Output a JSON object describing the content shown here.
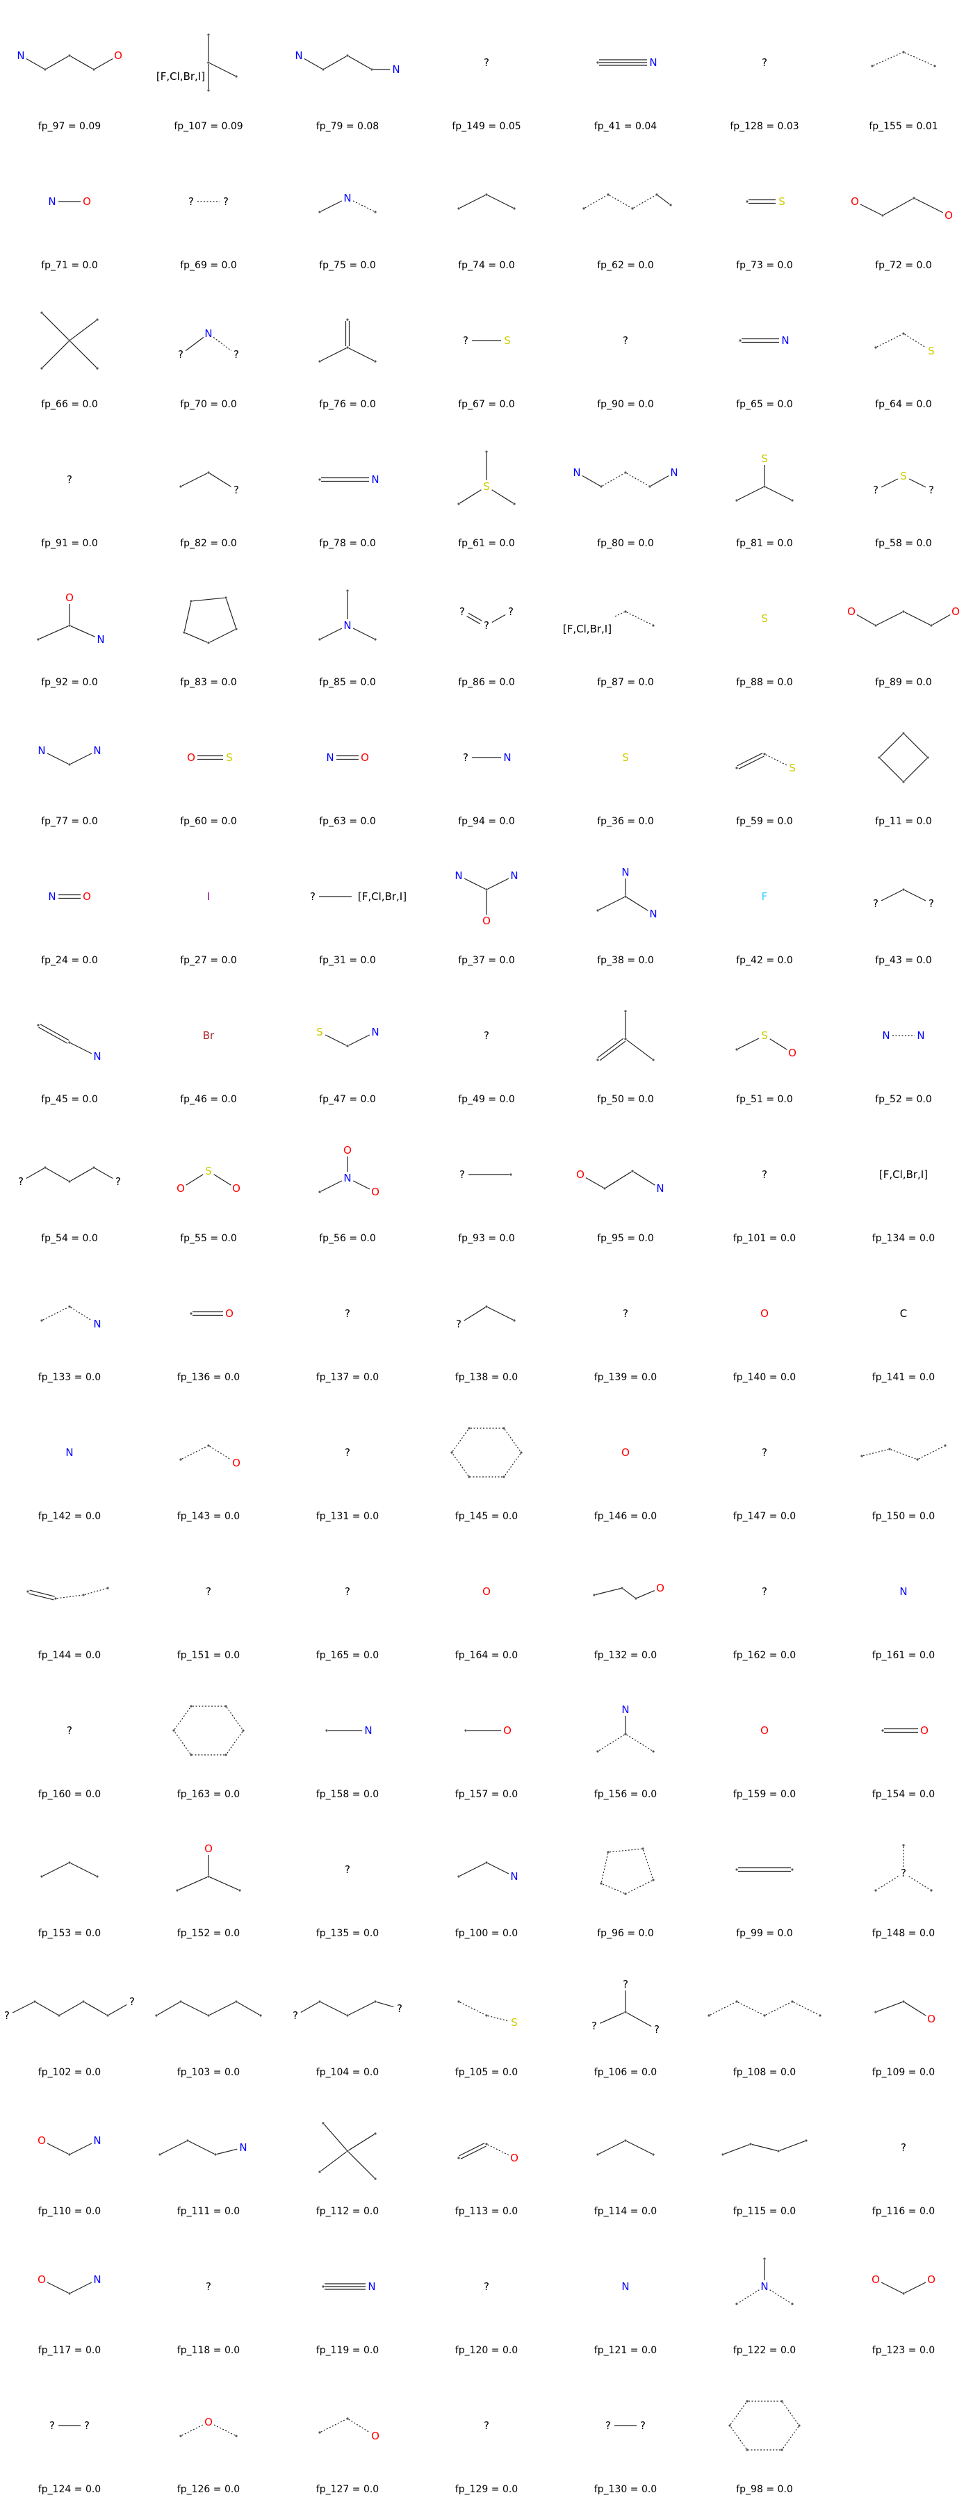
{
  "colors": {
    "C": "#000000",
    "N": "#0000ff",
    "O": "#ff0000",
    "S": "#cccc00",
    "F": "#33ccff",
    "I": "#940094",
    "Br": "#a62929",
    "X": "#000000",
    "?": "#000000"
  },
  "cells": [
    {
      "label": "fp_97 = 0.09",
      "icon": "fragment-N-C-C-C-O"
    },
    {
      "label": "fp_107 = 0.09",
      "icon": "fragment-halide-quaternary-carbon"
    },
    {
      "label": "fp_79 = 0.08",
      "icon": "fragment-N-C-C-C-N"
    },
    {
      "label": "fp_149 = 0.05",
      "icon": "fragment-wildcard"
    },
    {
      "label": "fp_41 = 0.04",
      "icon": "fragment-nitrile"
    },
    {
      "label": "fp_128 = 0.03",
      "icon": "fragment-wildcard"
    },
    {
      "label": "fp_155 = 0.01",
      "icon": "fragment-aromatic-C-C-C"
    },
    {
      "label": "fp_71 = 0.0",
      "icon": "fragment-N-O"
    },
    {
      "label": "fp_69 = 0.0",
      "icon": "fragment-wildcard-pair"
    },
    {
      "label": "fp_75 = 0.0",
      "icon": "fragment-aromatic-C-N-C"
    },
    {
      "label": "fp_74 = 0.0",
      "icon": "fragment-C-C-C"
    },
    {
      "label": "fp_62 = 0.0",
      "icon": "fragment-aromatic-chain"
    },
    {
      "label": "fp_73 = 0.0",
      "icon": "fragment-C=S"
    },
    {
      "label": "fp_72 = 0.0",
      "icon": "fragment-O-C-C-O"
    },
    {
      "label": "fp_66 = 0.0",
      "icon": "fragment-quaternary-carbon"
    },
    {
      "label": "fp_70 = 0.0",
      "icon": "fragment-wildcard-N-wildcard"
    },
    {
      "label": "fp_76 = 0.0",
      "icon": "fragment-alkene-branch"
    },
    {
      "label": "fp_67 = 0.0",
      "icon": "fragment-wildcard-S"
    },
    {
      "label": "fp_90 = 0.0",
      "icon": "fragment-wildcard"
    },
    {
      "label": "fp_65 = 0.0",
      "icon": "fragment-C=N"
    },
    {
      "label": "fp_64 = 0.0",
      "icon": "fragment-aromatic-C-C-S"
    },
    {
      "label": "fp_91 = 0.0",
      "icon": "fragment-wildcard"
    },
    {
      "label": "fp_82 = 0.0",
      "icon": "fragment-C-C-wildcard"
    },
    {
      "label": "fp_78 = 0.0",
      "icon": "fragment-nitrile"
    },
    {
      "label": "fp_61 = 0.0",
      "icon": "fragment-sulfonium"
    },
    {
      "label": "fp_80 = 0.0",
      "icon": "fragment-N-C-C-C-N-aromatic"
    },
    {
      "label": "fp_81 = 0.0",
      "icon": "fragment-S-branch"
    },
    {
      "label": "fp_58 = 0.0",
      "icon": "fragment-wildcard-S-wildcard"
    },
    {
      "label": "fp_92 = 0.0",
      "icon": "fragment-amide"
    },
    {
      "label": "fp_83 = 0.0",
      "icon": "fragment-five-ring"
    },
    {
      "label": "fp_85 = 0.0",
      "icon": "fragment-tertiary-amine"
    },
    {
      "label": "fp_86 = 0.0",
      "icon": "fragment-wildcard-double"
    },
    {
      "label": "fp_87 = 0.0",
      "icon": "fragment-halide-aromatic"
    },
    {
      "label": "fp_88 = 0.0",
      "icon": "fragment-S"
    },
    {
      "label": "fp_89 = 0.0",
      "icon": "fragment-O-chain-O"
    },
    {
      "label": "fp_77 = 0.0",
      "icon": "fragment-N-C-N"
    },
    {
      "label": "fp_60 = 0.0",
      "icon": "fragment-O=S"
    },
    {
      "label": "fp_63 = 0.0",
      "icon": "fragment-N=O"
    },
    {
      "label": "fp_94 = 0.0",
      "icon": "fragment-wildcard-N"
    },
    {
      "label": "fp_36 = 0.0",
      "icon": "fragment-S"
    },
    {
      "label": "fp_59 = 0.0",
      "icon": "fragment-alkene-S"
    },
    {
      "label": "fp_11 = 0.0",
      "icon": "fragment-four-ring"
    },
    {
      "label": "fp_24 = 0.0",
      "icon": "fragment-N=O"
    },
    {
      "label": "fp_27 = 0.0",
      "icon": "fragment-I"
    },
    {
      "label": "fp_31 = 0.0",
      "icon": "fragment-wildcard-halide"
    },
    {
      "label": "fp_37 = 0.0",
      "icon": "fragment-urea"
    },
    {
      "label": "fp_38 = 0.0",
      "icon": "fragment-amidine"
    },
    {
      "label": "fp_42 = 0.0",
      "icon": "fragment-F"
    },
    {
      "label": "fp_43 = 0.0",
      "icon": "fragment-wildcard-C-wildcard"
    },
    {
      "label": "fp_45 = 0.0",
      "icon": "fragment-alkene-N"
    },
    {
      "label": "fp_46 = 0.0",
      "icon": "fragment-Br"
    },
    {
      "label": "fp_47 = 0.0",
      "icon": "fragment-S-C-N"
    },
    {
      "label": "fp_49 = 0.0",
      "icon": "fragment-wildcard"
    },
    {
      "label": "fp_50 = 0.0",
      "icon": "fragment-isobutene"
    },
    {
      "label": "fp_51 = 0.0",
      "icon": "fragment-sulfoxide"
    },
    {
      "label": "fp_52 = 0.0",
      "icon": "fragment-N-N-aromatic"
    },
    {
      "label": "fp_54 = 0.0",
      "icon": "fragment-wildcard-chain"
    },
    {
      "label": "fp_55 = 0.0",
      "icon": "fragment-O-S-O"
    },
    {
      "label": "fp_56 = 0.0",
      "icon": "fragment-nitro"
    },
    {
      "label": "fp_93 = 0.0",
      "icon": "fragment-wildcard-C"
    },
    {
      "label": "fp_95 = 0.0",
      "icon": "fragment-O-C-C-N"
    },
    {
      "label": "fp_101 = 0.0",
      "icon": "fragment-wildcard"
    },
    {
      "label": "fp_134 = 0.0",
      "icon": "fragment-halide"
    },
    {
      "label": "fp_133 = 0.0",
      "icon": "fragment-aromatic-C-C-N"
    },
    {
      "label": "fp_136 = 0.0",
      "icon": "fragment-C=O"
    },
    {
      "label": "fp_137 = 0.0",
      "icon": "fragment-wildcard"
    },
    {
      "label": "fp_138 = 0.0",
      "icon": "fragment-wildcard-C-C"
    },
    {
      "label": "fp_139 = 0.0",
      "icon": "fragment-wildcard"
    },
    {
      "label": "fp_140 = 0.0",
      "icon": "fragment-O"
    },
    {
      "label": "fp_141 = 0.0",
      "icon": "fragment-C"
    },
    {
      "label": "fp_142 = 0.0",
      "icon": "fragment-N"
    },
    {
      "label": "fp_143 = 0.0",
      "icon": "fragment-aromatic-C-C-O"
    },
    {
      "label": "fp_131 = 0.0",
      "icon": "fragment-wildcard"
    },
    {
      "label": "fp_145 = 0.0",
      "icon": "fragment-six-ring-aromatic"
    },
    {
      "label": "fp_146 = 0.0",
      "icon": "fragment-O"
    },
    {
      "label": "fp_147 = 0.0",
      "icon": "fragment-wildcard"
    },
    {
      "label": "fp_150 = 0.0",
      "icon": "fragment-aromatic-chain-4"
    },
    {
      "label": "fp_144 = 0.0",
      "icon": "fragment-aromatic-double-chain"
    },
    {
      "label": "fp_151 = 0.0",
      "icon": "fragment-wildcard"
    },
    {
      "label": "fp_165 = 0.0",
      "icon": "fragment-wildcard"
    },
    {
      "label": "fp_164 = 0.0",
      "icon": "fragment-O"
    },
    {
      "label": "fp_132 = 0.0",
      "icon": "fragment-C-C-O"
    },
    {
      "label": "fp_162 = 0.0",
      "icon": "fragment-wildcard"
    },
    {
      "label": "fp_161 = 0.0",
      "icon": "fragment-N"
    },
    {
      "label": "fp_160 = 0.0",
      "icon": "fragment-wildcard"
    },
    {
      "label": "fp_163 = 0.0",
      "icon": "fragment-six-ring-aromatic"
    },
    {
      "label": "fp_158 = 0.0",
      "icon": "fragment-C-N"
    },
    {
      "label": "fp_157 = 0.0",
      "icon": "fragment-C-O"
    },
    {
      "label": "fp_156 = 0.0",
      "icon": "fragment-aromatic-N-branch"
    },
    {
      "label": "fp_159 = 0.0",
      "icon": "fragment-O"
    },
    {
      "label": "fp_154 = 0.0",
      "icon": "fragment-C=O"
    },
    {
      "label": "fp_153 = 0.0",
      "icon": "fragment-C-C-C"
    },
    {
      "label": "fp_152 = 0.0",
      "icon": "fragment-ketone"
    },
    {
      "label": "fp_135 = 0.0",
      "icon": "fragment-wildcard"
    },
    {
      "label": "fp_100 = 0.0",
      "icon": "fragment-C-C-N"
    },
    {
      "label": "fp_96 = 0.0",
      "icon": "fragment-five-ring-aromatic"
    },
    {
      "label": "fp_99 = 0.0",
      "icon": "fragment-C=C"
    },
    {
      "label": "fp_148 = 0.0",
      "icon": "fragment-wildcard-branch"
    },
    {
      "label": "fp_102 = 0.0",
      "icon": "fragment-wildcard-chain-6"
    },
    {
      "label": "fp_103 = 0.0",
      "icon": "fragment-chain-5"
    },
    {
      "label": "fp_104 = 0.0",
      "icon": "fragment-chain-5-wildcard"
    },
    {
      "label": "fp_105 = 0.0",
      "icon": "fragment-aromatic-C-C-C-S"
    },
    {
      "label": "fp_106 = 0.0",
      "icon": "fragment-wildcard-tripod"
    },
    {
      "label": "fp_108 = 0.0",
      "icon": "fragment-aromatic-chain-6"
    },
    {
      "label": "fp_109 = 0.0",
      "icon": "fragment-C-C-O"
    },
    {
      "label": "fp_110 = 0.0",
      "icon": "fragment-O-C-N"
    },
    {
      "label": "fp_111 = 0.0",
      "icon": "fragment-C-C-C-N"
    },
    {
      "label": "fp_112 = 0.0",
      "icon": "fragment-quaternary-carbon"
    },
    {
      "label": "fp_113 = 0.0",
      "icon": "fragment-alkene-O"
    },
    {
      "label": "fp_114 = 0.0",
      "icon": "fragment-C-C-C"
    },
    {
      "label": "fp_115 = 0.0",
      "icon": "fragment-chain-4"
    },
    {
      "label": "fp_116 = 0.0",
      "icon": "fragment-wildcard"
    },
    {
      "label": "fp_117 = 0.0",
      "icon": "fragment-O-C-N"
    },
    {
      "label": "fp_118 = 0.0",
      "icon": "fragment-wildcard"
    },
    {
      "label": "fp_119 = 0.0",
      "icon": "fragment-nitrile"
    },
    {
      "label": "fp_120 = 0.0",
      "icon": "fragment-wildcard"
    },
    {
      "label": "fp_121 = 0.0",
      "icon": "fragment-N"
    },
    {
      "label": "fp_122 = 0.0",
      "icon": "fragment-aromatic-amine"
    },
    {
      "label": "fp_123 = 0.0",
      "icon": "fragment-O-C-O"
    },
    {
      "label": "fp_124 = 0.0",
      "icon": "fragment-wildcard-pair"
    },
    {
      "label": "fp_126 = 0.0",
      "icon": "fragment-aromatic-ether"
    },
    {
      "label": "fp_127 = 0.0",
      "icon": "fragment-aromatic-C-C-O"
    },
    {
      "label": "fp_129 = 0.0",
      "icon": "fragment-wildcard"
    },
    {
      "label": "fp_130 = 0.0",
      "icon": "fragment-wildcard-pair"
    },
    {
      "label": "fp_98 = 0.0",
      "icon": "fragment-six-ring-aromatic"
    }
  ]
}
